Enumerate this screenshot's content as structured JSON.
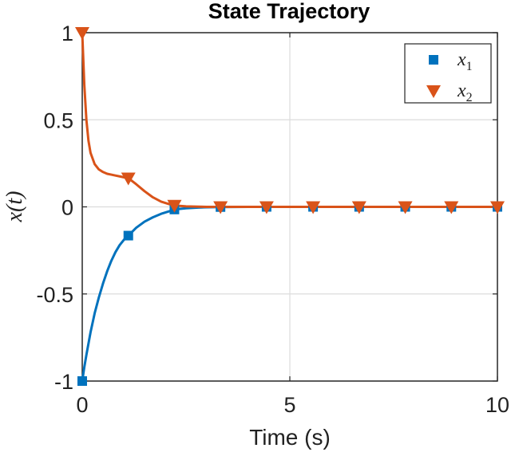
{
  "chart_data": {
    "type": "line",
    "title": "State Trajectory",
    "xlabel": "Time (s)",
    "ylabel": "x(t)",
    "xlim": [
      0,
      10
    ],
    "ylim": [
      -1,
      1
    ],
    "xticks": [
      {
        "value": 0,
        "label": "0"
      },
      {
        "value": 5,
        "label": "5"
      },
      {
        "value": 10,
        "label": "10"
      }
    ],
    "yticks": [
      {
        "value": 1,
        "label": "1"
      },
      {
        "value": 0.5,
        "label": "0.5"
      },
      {
        "value": 0,
        "label": "0"
      },
      {
        "value": -0.5,
        "label": "-0.5"
      },
      {
        "value": -1,
        "label": "-1"
      }
    ],
    "grid": true,
    "legend_position": "top-right",
    "series": [
      {
        "name": "x_1",
        "legend_base": "x",
        "legend_sub": "1",
        "color": "#0072BD",
        "marker": "square",
        "curve": {
          "x": [
            0,
            0.05,
            0.1,
            0.2,
            0.3,
            0.4,
            0.5,
            0.6,
            0.7,
            0.8,
            0.9,
            1.0,
            1.11,
            1.3,
            1.5,
            1.7,
            1.9,
            2.1,
            2.22,
            2.5,
            2.8,
            3.0,
            3.33,
            4.0,
            4.44,
            5.0,
            5.56,
            6.0,
            6.67,
            7.0,
            7.78,
            8.0,
            8.89,
            9.0,
            10.0
          ],
          "y": [
            -1.0,
            -0.92,
            -0.85,
            -0.72,
            -0.61,
            -0.52,
            -0.44,
            -0.37,
            -0.31,
            -0.26,
            -0.22,
            -0.19,
            -0.165,
            -0.12,
            -0.085,
            -0.06,
            -0.04,
            -0.025,
            -0.015,
            -0.008,
            -0.004,
            -0.002,
            -0.001,
            0,
            0,
            0,
            0,
            0,
            0,
            0,
            0,
            0,
            0,
            0,
            0
          ]
        },
        "markers": {
          "x": [
            0,
            1.11,
            2.22,
            3.33,
            4.44,
            5.56,
            6.67,
            7.78,
            8.89,
            10.0
          ],
          "y": [
            -1.0,
            -0.165,
            -0.015,
            -0.001,
            0,
            0,
            0,
            0,
            0,
            0
          ]
        }
      },
      {
        "name": "x_2",
        "legend_base": "x",
        "legend_sub": "2",
        "color": "#D95319",
        "marker": "triangle-down",
        "curve": {
          "x": [
            0,
            0.05,
            0.1,
            0.15,
            0.2,
            0.3,
            0.4,
            0.5,
            0.6,
            0.7,
            0.8,
            0.9,
            1.0,
            1.11,
            1.3,
            1.5,
            1.7,
            1.9,
            2.1,
            2.22,
            2.5,
            2.8,
            3.0,
            3.33,
            4.0,
            4.44,
            5.0,
            5.56,
            6.0,
            6.67,
            7.0,
            7.78,
            8.0,
            8.89,
            9.0,
            10.0
          ],
          "y": [
            1.0,
            0.7,
            0.5,
            0.38,
            0.31,
            0.245,
            0.215,
            0.2,
            0.19,
            0.185,
            0.18,
            0.175,
            0.17,
            0.165,
            0.13,
            0.09,
            0.055,
            0.03,
            0.015,
            0.008,
            0.003,
            0.001,
            0,
            0,
            0,
            0,
            0,
            0,
            0,
            0,
            0,
            0,
            0,
            0,
            0,
            0
          ]
        },
        "markers": {
          "x": [
            0,
            1.11,
            2.22,
            3.33,
            4.44,
            5.56,
            6.67,
            7.78,
            8.89,
            10.0
          ],
          "y": [
            1.0,
            0.165,
            0.008,
            0,
            0,
            0,
            0,
            0,
            0,
            0
          ]
        }
      }
    ]
  }
}
